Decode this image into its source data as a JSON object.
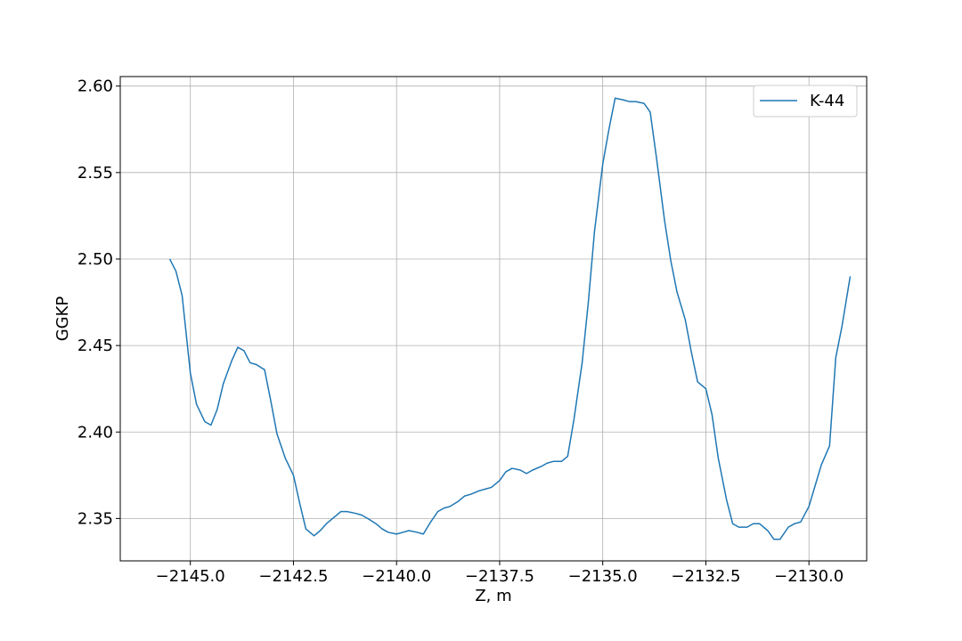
{
  "chart_data": {
    "type": "line",
    "title": "",
    "xlabel": "Z, m",
    "ylabel": "GGKP",
    "xlim": [
      -2146.7,
      -2128.6
    ],
    "ylim": [
      2.3255,
      2.6055
    ],
    "x_ticks": [
      -2145.0,
      -2142.5,
      -2140.0,
      -2137.5,
      -2135.0,
      -2132.5,
      -2130.0
    ],
    "x_tick_labels": [
      "−2145.0",
      "−2142.5",
      "−2140.0",
      "−2137.5",
      "−2135.0",
      "−2132.5",
      "−2130.0"
    ],
    "y_ticks": [
      2.35,
      2.4,
      2.45,
      2.5,
      2.55,
      2.6
    ],
    "y_tick_labels": [
      "2.35",
      "2.40",
      "2.45",
      "2.50",
      "2.55",
      "2.60"
    ],
    "grid": true,
    "legend_position": "top-right",
    "colors": {
      "series": "#1f77b4",
      "grid": "#b0b0b0"
    },
    "series": [
      {
        "name": "K-44",
        "x": [
          -2145.5,
          -2145.35,
          -2145.2,
          -2145.0,
          -2144.85,
          -2144.65,
          -2144.5,
          -2144.35,
          -2144.2,
          -2144.0,
          -2143.85,
          -2143.7,
          -2143.55,
          -2143.4,
          -2143.2,
          -2143.05,
          -2142.9,
          -2142.7,
          -2142.5,
          -2142.35,
          -2142.2,
          -2142.0,
          -2141.85,
          -2141.7,
          -2141.5,
          -2141.35,
          -2141.2,
          -2141.0,
          -2140.85,
          -2140.7,
          -2140.5,
          -2140.35,
          -2140.2,
          -2140.0,
          -2139.85,
          -2139.7,
          -2139.5,
          -2139.35,
          -2139.2,
          -2139.0,
          -2138.85,
          -2138.7,
          -2138.5,
          -2138.35,
          -2138.2,
          -2138.0,
          -2137.85,
          -2137.7,
          -2137.5,
          -2137.35,
          -2137.2,
          -2137.0,
          -2136.85,
          -2136.7,
          -2136.5,
          -2136.35,
          -2136.2,
          -2136.0,
          -2135.85,
          -2135.7,
          -2135.5,
          -2135.35,
          -2135.2,
          -2135.0,
          -2134.85,
          -2134.7,
          -2134.5,
          -2134.35,
          -2134.2,
          -2134.0,
          -2133.85,
          -2133.7,
          -2133.5,
          -2133.35,
          -2133.2,
          -2133.0,
          -2132.85,
          -2132.7,
          -2132.5,
          -2132.35,
          -2132.2,
          -2132.0,
          -2131.85,
          -2131.7,
          -2131.5,
          -2131.35,
          -2131.2,
          -2131.0,
          -2130.85,
          -2130.7,
          -2130.5,
          -2130.35,
          -2130.2,
          -2130.0,
          -2129.85,
          -2129.7,
          -2129.5,
          -2129.35,
          -2129.2,
          -2129.0
        ],
        "values": [
          2.5,
          2.493,
          2.479,
          2.434,
          2.416,
          2.406,
          2.404,
          2.413,
          2.428,
          2.441,
          2.449,
          2.447,
          2.44,
          2.439,
          2.436,
          2.418,
          2.399,
          2.385,
          2.375,
          2.359,
          2.344,
          2.34,
          2.343,
          2.347,
          2.351,
          2.354,
          2.354,
          2.353,
          2.352,
          2.35,
          2.347,
          2.344,
          2.342,
          2.341,
          2.342,
          2.343,
          2.342,
          2.341,
          2.347,
          2.354,
          2.356,
          2.357,
          2.36,
          2.363,
          2.364,
          2.366,
          2.367,
          2.368,
          2.372,
          2.377,
          2.379,
          2.378,
          2.376,
          2.378,
          2.38,
          2.382,
          2.383,
          2.383,
          2.386,
          2.407,
          2.44,
          2.475,
          2.516,
          2.555,
          2.575,
          2.593,
          2.592,
          2.591,
          2.591,
          2.59,
          2.585,
          2.559,
          2.522,
          2.499,
          2.481,
          2.465,
          2.446,
          2.429,
          2.425,
          2.41,
          2.385,
          2.361,
          2.347,
          2.345,
          2.345,
          2.347,
          2.347,
          2.343,
          2.338,
          2.338,
          2.345,
          2.347,
          2.348,
          2.357,
          2.369,
          2.381,
          2.392,
          2.443,
          2.461,
          2.49
        ]
      }
    ]
  }
}
